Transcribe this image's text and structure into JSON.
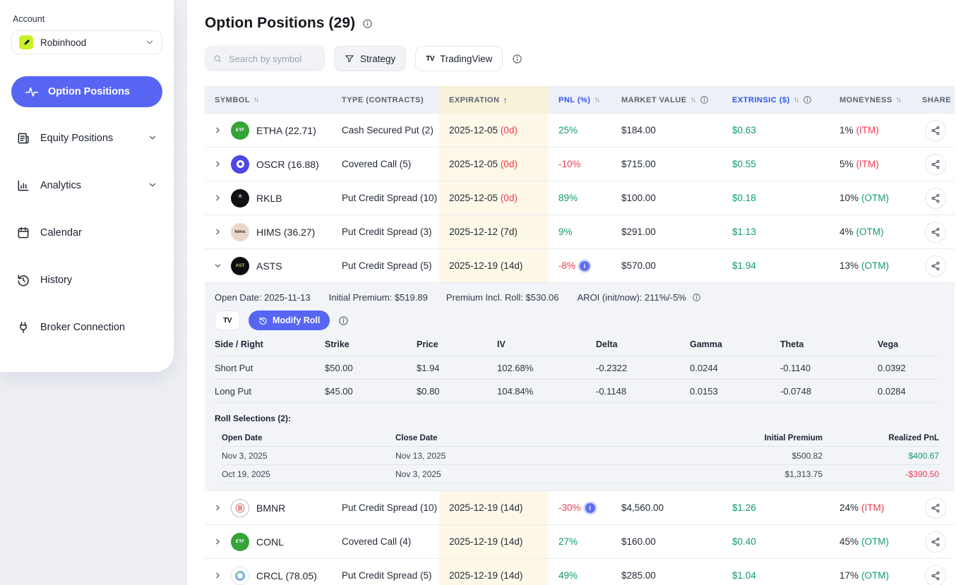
{
  "colors": {
    "accent": "#5766f2",
    "green": "#12996d",
    "red": "#ee3a4f",
    "yellow_cell": "#fdf8e8",
    "yellow_head": "#f9f2da",
    "head_blue": "#2f55f2"
  },
  "sidebar": {
    "account_label": "Account",
    "account_name": "Robinhood",
    "items": [
      {
        "label": "Option Positions",
        "icon": "pulse-icon",
        "active": true
      },
      {
        "label": "Equity Positions",
        "icon": "equity-icon",
        "chevron": true
      },
      {
        "label": "Analytics",
        "icon": "analytics-icon",
        "chevron": true
      },
      {
        "label": "Calendar",
        "icon": "calendar-icon"
      },
      {
        "label": "History",
        "icon": "history-icon"
      },
      {
        "label": "Broker Connection",
        "icon": "plug-icon"
      }
    ]
  },
  "header": {
    "title": "Option Positions (29)"
  },
  "controls": {
    "search_placeholder": "Search by symbol",
    "strategy_label": "Strategy",
    "tradingview_label": "TradingView"
  },
  "table": {
    "columns": [
      {
        "label": "SYMBOL",
        "sort": "both"
      },
      {
        "label": "TYPE (CONTRACTS)"
      },
      {
        "label": "EXPIRATION",
        "sort": "asc",
        "highlight": true
      },
      {
        "label": "PNL (%)",
        "sort": "both",
        "accent": true
      },
      {
        "label": "MARKET VALUE",
        "sort": "both",
        "info": true
      },
      {
        "label": "EXTRINSIC ($)",
        "sort": "both",
        "info": true,
        "accent": true
      },
      {
        "label": "MONEYNESS",
        "sort": "both"
      },
      {
        "label": "SHARE"
      }
    ],
    "rows": [
      {
        "symbol": "ETHA (22.71)",
        "logo": {
          "glyph": "ETF",
          "bg": "#35a437",
          "fg": "#ffffff"
        },
        "type": "Cash Secured Put (2)",
        "expiration": "2025-12-05",
        "dte": "(0d)",
        "dte_urgent": true,
        "pnl": "25%",
        "pnl_positive": true,
        "market_value": "$184.00",
        "extrinsic": "$0.63",
        "moneyness": "1%",
        "moneyness_tag": "(ITM)",
        "tag_positive": false
      },
      {
        "symbol": "OSCR (16.88)",
        "logo": {
          "bg": "#4f46e5",
          "donut": {
            "size": 11,
            "width": 3,
            "color": "#ffffff"
          }
        },
        "type": "Covered Call (5)",
        "expiration": "2025-12-05",
        "dte": "(0d)",
        "dte_urgent": true,
        "pnl": "-10%",
        "pnl_positive": false,
        "market_value": "$715.00",
        "extrinsic": "$0.55",
        "moneyness": "5%",
        "moneyness_tag": "(ITM)",
        "tag_positive": false
      },
      {
        "symbol": "RKLB",
        "logo": {
          "glyph": "*",
          "bg": "#101114",
          "fg": "#8d949e"
        },
        "type": "Put Credit Spread (10)",
        "expiration": "2025-12-05",
        "dte": "(0d)",
        "dte_urgent": true,
        "pnl": "89%",
        "pnl_positive": true,
        "market_value": "$100.00",
        "extrinsic": "$0.18",
        "moneyness": "10%",
        "moneyness_tag": "(OTM)",
        "tag_positive": true
      },
      {
        "symbol": "HIMS (36.27)",
        "logo": {
          "glyph": "hims",
          "bg": "#e8d8ca",
          "fg": "#33271c"
        },
        "type": "Put Credit Spread (3)",
        "expiration": "2025-12-12",
        "dte": "(7d)",
        "dte_urgent": false,
        "pnl": "9%",
        "pnl_positive": true,
        "market_value": "$291.00",
        "extrinsic": "$1.13",
        "moneyness": "4%",
        "moneyness_tag": "(OTM)",
        "tag_positive": true
      },
      {
        "symbol": "ASTS",
        "logo": {
          "glyph": "AST",
          "bg": "#0d0d10",
          "fg": "#d9b964"
        },
        "expanded": true,
        "type": "Put Credit Spread (5)",
        "expiration": "2025-12-19",
        "dte": "(14d)",
        "dte_urgent": false,
        "pnl": "-8%",
        "pnl_positive": false,
        "pnl_info": true,
        "market_value": "$570.00",
        "extrinsic": "$1.94",
        "moneyness": "13%",
        "moneyness_tag": "(OTM)",
        "tag_positive": true
      },
      {
        "symbol": "BMNR",
        "logo": {
          "glyph": "Ⓑ",
          "bg": "#ffffff",
          "fg": "#d96a6a",
          "ring": "#6b7280",
          "ring_style": "dotted"
        },
        "type": "Put Credit Spread (10)",
        "expiration": "2025-12-19",
        "dte": "(14d)",
        "dte_urgent": false,
        "pnl": "-30%",
        "pnl_positive": false,
        "pnl_info": true,
        "market_value": "$4,560.00",
        "extrinsic": "$1.26",
        "moneyness": "24%",
        "moneyness_tag": "(ITM)",
        "tag_positive": false
      },
      {
        "symbol": "CONL",
        "logo": {
          "glyph": "ETF",
          "bg": "#35a437",
          "fg": "#ffffff"
        },
        "type": "Covered Call (4)",
        "expiration": "2025-12-19",
        "dte": "(14d)",
        "dte_urgent": false,
        "pnl": "27%",
        "pnl_positive": true,
        "market_value": "$160.00",
        "extrinsic": "$0.40",
        "moneyness": "45%",
        "moneyness_tag": "(OTM)",
        "tag_positive": true
      },
      {
        "symbol": "CRCL (78.05)",
        "logo": {
          "bg": "#ffffff",
          "ring": "#e3e7ee",
          "donut": {
            "size": 14,
            "width": 3,
            "color": "#7aa8f2",
            "accent": "#7cc7a5"
          }
        },
        "type": "Put Credit Spread (5)",
        "expiration": "2025-12-19",
        "dte": "(14d)",
        "dte_urgent": false,
        "pnl": "49%",
        "pnl_positive": true,
        "market_value": "$285.00",
        "extrinsic": "$1.04",
        "moneyness": "17%",
        "moneyness_tag": "(OTM)",
        "tag_positive": true
      }
    ]
  },
  "expanded": {
    "meta": [
      "Open Date: 2025-11-13",
      "Initial Premium: $519.89",
      "Premium Incl. Roll: $530.06",
      "AROI (init/now): 211%/-5%"
    ],
    "modify_roll_label": "Modify Roll",
    "legs": {
      "columns": [
        "Side / Right",
        "Strike",
        "Price",
        "IV",
        "Delta",
        "Gamma",
        "Theta",
        "Vega"
      ],
      "rows": [
        [
          "Short Put",
          "$50.00",
          "$1.94",
          "102.68%",
          "-0.2322",
          "0.0244",
          "-0.1140",
          "0.0392"
        ],
        [
          "Long Put",
          "$45.00",
          "$0.80",
          "104.84%",
          "-0.1148",
          "0.0153",
          "-0.0748",
          "0.0284"
        ]
      ]
    },
    "rolls": {
      "title": "Roll Selections (2):",
      "columns": [
        "Open Date",
        "Close Date",
        "Initial Premium",
        "Realized PnL"
      ],
      "rows": [
        {
          "open_date": "Nov 3, 2025",
          "close_date": "Nov 13, 2025",
          "initial_premium": "$500.82",
          "realized_pnl": "$400.67",
          "positive": true
        },
        {
          "open_date": "Oct 19, 2025",
          "close_date": "Nov 3, 2025",
          "initial_premium": "$1,313.75",
          "realized_pnl": "-$390.50",
          "positive": false
        }
      ]
    }
  }
}
